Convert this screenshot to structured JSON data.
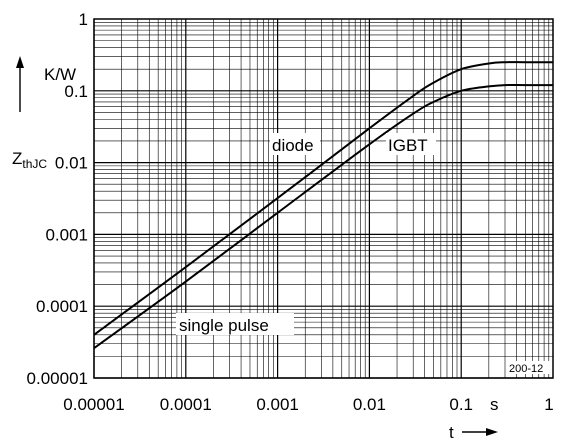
{
  "chart_data": {
    "type": "line",
    "x_scale": "log",
    "y_scale": "log",
    "xlim": [
      1e-05,
      1
    ],
    "ylim": [
      1e-05,
      1
    ],
    "grid": true,
    "x_ticks": [
      "0.00001",
      "0.0001",
      "0.001",
      "0.01",
      "0.1",
      "1"
    ],
    "y_ticks": [
      "0.00001",
      "0.0001",
      "0.001",
      "0.01",
      "0.1",
      "1"
    ],
    "x_label": "t",
    "x_unit": "s",
    "y_label_main": "Z",
    "y_label_sub": "thJC",
    "y_unit": "K/W",
    "series": [
      {
        "name": "diode",
        "x": [
          1e-05,
          0.0001,
          0.001,
          0.01,
          0.03,
          0.05,
          0.1,
          0.2,
          0.3,
          0.5,
          1
        ],
        "y": [
          4e-05,
          0.00035,
          0.0032,
          0.03,
          0.085,
          0.13,
          0.2,
          0.24,
          0.25,
          0.25,
          0.25
        ]
      },
      {
        "name": "IGBT",
        "x": [
          1e-05,
          0.0001,
          0.001,
          0.01,
          0.03,
          0.05,
          0.1,
          0.2,
          0.3,
          0.5,
          1
        ],
        "y": [
          2.6e-05,
          0.00022,
          0.002,
          0.018,
          0.048,
          0.07,
          0.1,
          0.115,
          0.12,
          0.12,
          0.12
        ]
      }
    ],
    "annotations": {
      "single_pulse": "single pulse",
      "code": "200-12"
    }
  }
}
